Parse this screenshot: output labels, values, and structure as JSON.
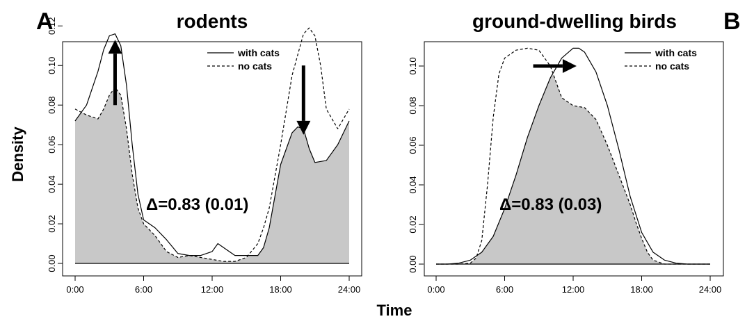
{
  "panels": [
    {
      "letter": "A",
      "title": "rodents",
      "overlap_label": "Δ=0.83 (0.01)",
      "legend": [
        "with cats",
        "no cats"
      ]
    },
    {
      "letter": "B",
      "title": "ground-dwelling birds",
      "overlap_label": "Δ=0.83 (0.03)",
      "legend": [
        "with cats",
        "no cats"
      ]
    }
  ],
  "y_axis_label": "Density",
  "x_axis_label": "Time",
  "chart_data": [
    {
      "type": "area",
      "title": "rodents",
      "xlabel": "Time",
      "ylabel": "Density",
      "x_unit": "hours",
      "xlim": [
        0,
        24
      ],
      "ylim": [
        0,
        0.12
      ],
      "x_ticks": [
        0,
        6,
        12,
        18,
        24
      ],
      "x_tick_labels": [
        "0:00",
        "6:00",
        "12:00",
        "18:00",
        "24:00"
      ],
      "y_ticks": [
        0,
        0.02,
        0.04,
        0.06,
        0.08,
        0.1,
        0.12
      ],
      "y_tick_labels": [
        "0.00",
        "0.02",
        "0.04",
        "0.06",
        "0.08",
        "0.10",
        "0.12"
      ],
      "legend_position": "top-right",
      "annotations": [
        "Δ=0.83 (0.01)",
        "up arrow at 3:30 (with cats peak increase)",
        "down arrow at 20:00 (with cats peak decrease)"
      ],
      "series": [
        {
          "name": "with cats",
          "line_style": "solid",
          "x": [
            0,
            1,
            2,
            2.5,
            3,
            3.5,
            4,
            4.5,
            5,
            5.5,
            6,
            7,
            8,
            9,
            10,
            11,
            12,
            12.5,
            13,
            14,
            15,
            16,
            16.5,
            17,
            18,
            19,
            19.5,
            20,
            20.5,
            21,
            22,
            23,
            24
          ],
          "y": [
            0.072,
            0.08,
            0.097,
            0.108,
            0.115,
            0.116,
            0.11,
            0.09,
            0.06,
            0.035,
            0.022,
            0.018,
            0.012,
            0.005,
            0.004,
            0.004,
            0.006,
            0.01,
            0.008,
            0.004,
            0.004,
            0.004,
            0.008,
            0.018,
            0.05,
            0.066,
            0.069,
            0.068,
            0.058,
            0.051,
            0.052,
            0.06,
            0.072
          ]
        },
        {
          "name": "no cats",
          "line_style": "dashed",
          "x": [
            0,
            1,
            2,
            2.5,
            3,
            3.5,
            4,
            4.5,
            5,
            5.5,
            6,
            7,
            8,
            9,
            10,
            11,
            12,
            13,
            14,
            15,
            16,
            16.5,
            17,
            18,
            19,
            20,
            20.5,
            21,
            21.5,
            22,
            23,
            24
          ],
          "y": [
            0.078,
            0.075,
            0.073,
            0.078,
            0.085,
            0.089,
            0.085,
            0.068,
            0.045,
            0.028,
            0.02,
            0.014,
            0.006,
            0.003,
            0.004,
            0.003,
            0.002,
            0.001,
            0.001,
            0.003,
            0.01,
            0.018,
            0.028,
            0.06,
            0.095,
            0.116,
            0.119,
            0.115,
            0.1,
            0.078,
            0.068,
            0.078
          ]
        }
      ]
    },
    {
      "type": "area",
      "title": "ground-dwelling birds",
      "xlabel": "Time",
      "ylabel": "Density",
      "x_unit": "hours",
      "xlim": [
        0,
        24
      ],
      "ylim": [
        0,
        0.11
      ],
      "x_ticks": [
        0,
        6,
        12,
        18,
        24
      ],
      "x_tick_labels": [
        "0:00",
        "6:00",
        "12:00",
        "18:00",
        "24:00"
      ],
      "y_ticks": [
        0,
        0.02,
        0.04,
        0.06,
        0.08,
        0.1
      ],
      "y_tick_labels": [
        "0.00",
        "0.02",
        "0.04",
        "0.06",
        "0.08",
        "0.10"
      ],
      "legend_position": "top-right",
      "annotations": [
        "Δ=0.83 (0.03)",
        "right arrow from 8:30 to 12:30 (with cats peak shift later)"
      ],
      "series": [
        {
          "name": "with cats",
          "line_style": "solid",
          "x": [
            0,
            1,
            2,
            3,
            4,
            5,
            6,
            7,
            8,
            9,
            10,
            11,
            12,
            12.5,
            13,
            14,
            15,
            16,
            17,
            18,
            19,
            20,
            21,
            22,
            23,
            24
          ],
          "y": [
            0,
            0,
            0.0005,
            0.002,
            0.006,
            0.014,
            0.028,
            0.045,
            0.064,
            0.08,
            0.094,
            0.104,
            0.109,
            0.109,
            0.107,
            0.097,
            0.08,
            0.058,
            0.034,
            0.016,
            0.006,
            0.002,
            0.0005,
            0,
            0,
            0
          ]
        },
        {
          "name": "no cats",
          "line_style": "dashed",
          "x": [
            0,
            2,
            3,
            3.5,
            4,
            4.5,
            5,
            5.5,
            6,
            7,
            8,
            9,
            10,
            10.5,
            11,
            12,
            13,
            14,
            15,
            16,
            17,
            17.5,
            18,
            18.5,
            19,
            20,
            22,
            24
          ],
          "y": [
            0,
            0,
            0.0005,
            0.003,
            0.012,
            0.04,
            0.074,
            0.096,
            0.104,
            0.108,
            0.109,
            0.108,
            0.1,
            0.092,
            0.084,
            0.08,
            0.079,
            0.073,
            0.06,
            0.045,
            0.03,
            0.021,
            0.013,
            0.006,
            0.002,
            0,
            0,
            0
          ]
        }
      ]
    }
  ]
}
